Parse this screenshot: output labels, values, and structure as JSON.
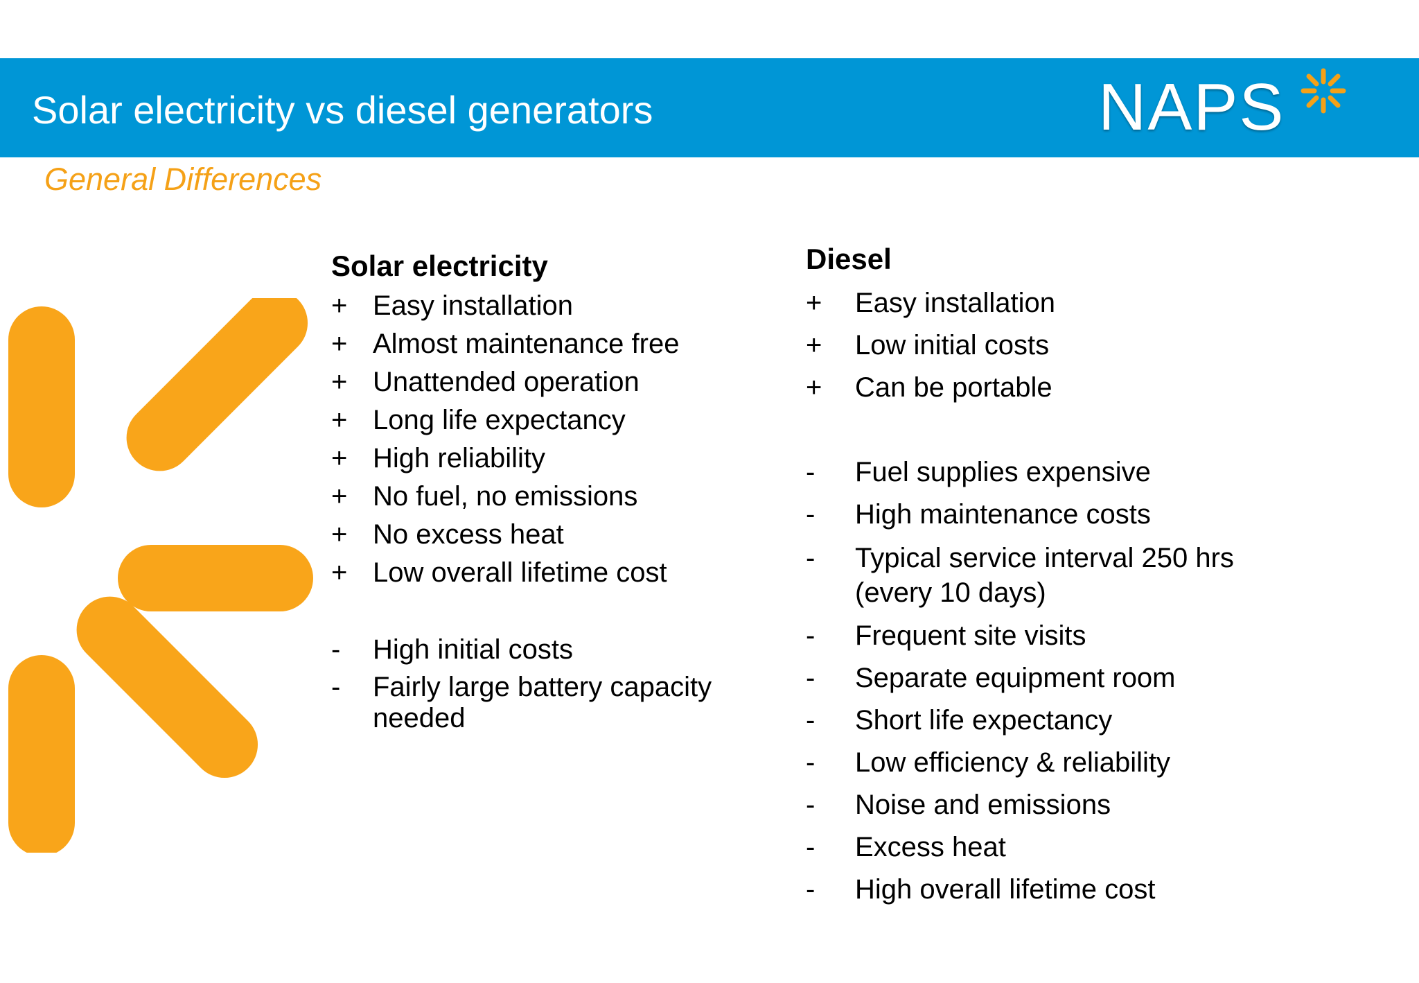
{
  "header": {
    "title": "Solar electricity vs diesel generators",
    "logo_text": "NAPS",
    "bar_color": "#0096d6"
  },
  "subtitle": "General Differences",
  "accent_color": "#f5a117",
  "solar": {
    "heading": "Solar electricity",
    "pros": [
      {
        "bullet": "+",
        "text": "Easy installation"
      },
      {
        "bullet": "+",
        "text": "Almost maintenance free"
      },
      {
        "bullet": "+",
        "text": "Unattended operation"
      },
      {
        "bullet": "+",
        "text": "Long life expectancy"
      },
      {
        "bullet": "+",
        "text": "High reliability"
      },
      {
        "bullet": "+",
        "text": "No fuel, no emissions"
      },
      {
        "bullet": "+",
        "text": "No excess heat"
      },
      {
        "bullet": "+",
        "text": "Low overall lifetime cost"
      }
    ],
    "cons": [
      {
        "bullet": "-",
        "text": "High initial costs"
      },
      {
        "bullet": "-",
        "line1": "Fairly large battery capacity",
        "line2": "needed"
      }
    ]
  },
  "diesel": {
    "heading": "Diesel",
    "pros": [
      {
        "bullet": "+",
        "text": "Easy installation"
      },
      {
        "bullet": "+",
        "text": "Low initial costs"
      },
      {
        "bullet": "+",
        "text": "Can be portable"
      }
    ],
    "cons": [
      {
        "bullet": "-",
        "text": "Fuel supplies expensive"
      },
      {
        "bullet": "-",
        "text": "High maintenance costs"
      },
      {
        "bullet": "-",
        "line1": "Typical service interval 250 hrs",
        "line2": "(every 10 days)"
      },
      {
        "bullet": "-",
        "text": "Frequent site visits"
      },
      {
        "bullet": "-",
        "text": "Separate equipment room"
      },
      {
        "bullet": "-",
        "text": "Short life expectancy"
      },
      {
        "bullet": "-",
        "text": "Low efficiency & reliability"
      },
      {
        "bullet": "-",
        "text": "Noise and emissions"
      },
      {
        "bullet": "-",
        "text": "Excess heat"
      },
      {
        "bullet": "-",
        "text": "High overall lifetime cost"
      }
    ]
  },
  "icons": {
    "logo_star": "sun-star-icon",
    "decor": "sunburst-decoration"
  }
}
